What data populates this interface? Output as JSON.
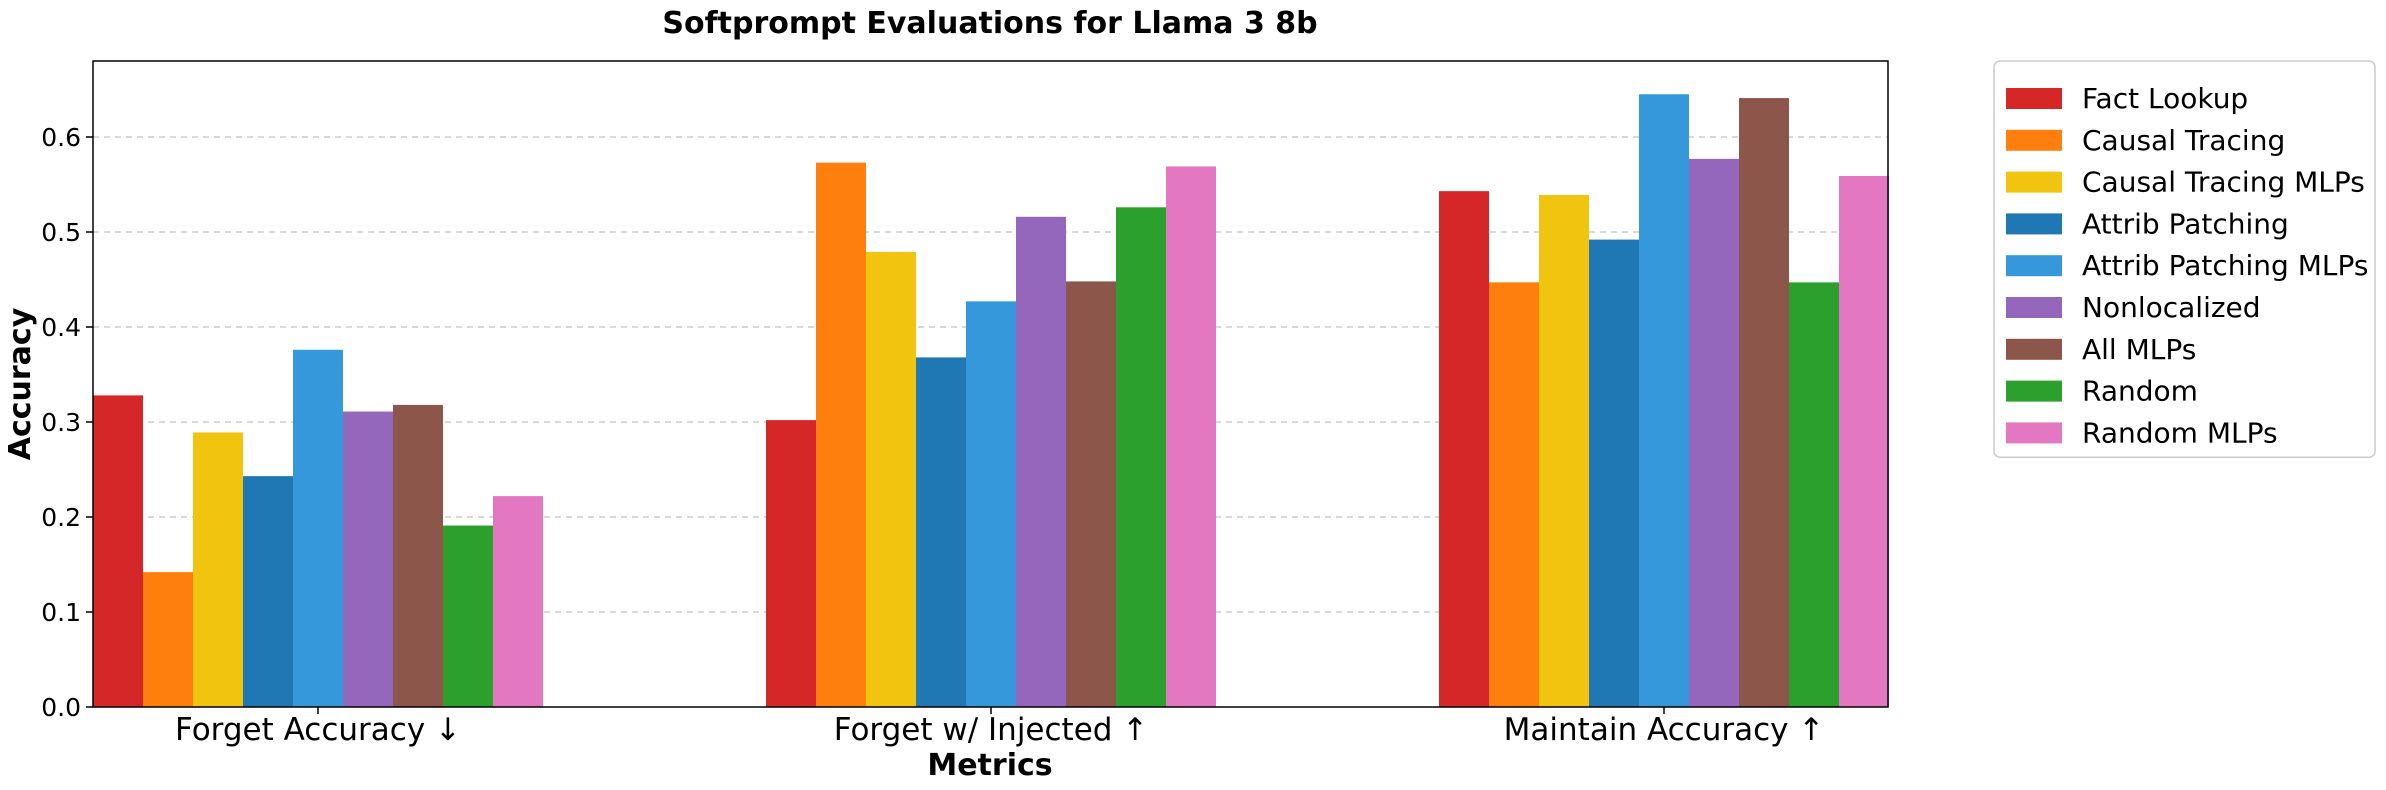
{
  "chart_data": {
    "type": "bar",
    "title": "Softprompt Evaluations for Llama 3 8b",
    "xlabel": "Metrics",
    "ylabel": "Accuracy",
    "ylim": [
      0,
      0.68
    ],
    "yticks": [
      "0.0",
      "0.1",
      "0.2",
      "0.3",
      "0.4",
      "0.5",
      "0.6"
    ],
    "grid": "horizontal dashed",
    "legend_position": "outside-right-top",
    "categories": [
      "Forget Accuracy ↓",
      "Forget w/ Injected ↑",
      "Maintain Accuracy ↑"
    ],
    "series": [
      {
        "name": "Fact Lookup",
        "color": "#d62728",
        "values": [
          0.328,
          0.302,
          0.543
        ]
      },
      {
        "name": "Causal Tracing",
        "color": "#ff7f0e",
        "values": [
          0.142,
          0.573,
          0.447
        ]
      },
      {
        "name": "Causal Tracing MLPs",
        "color": "#f1c40f",
        "values": [
          0.289,
          0.479,
          0.539
        ]
      },
      {
        "name": "Attrib Patching",
        "color": "#1f77b4",
        "values": [
          0.243,
          0.368,
          0.492
        ]
      },
      {
        "name": "Attrib Patching MLPs",
        "color": "#3498db",
        "values": [
          0.376,
          0.427,
          0.645
        ]
      },
      {
        "name": "Nonlocalized",
        "color": "#9467bd",
        "values": [
          0.311,
          0.516,
          0.577
        ]
      },
      {
        "name": "All MLPs",
        "color": "#8c564b",
        "values": [
          0.318,
          0.448,
          0.641
        ]
      },
      {
        "name": "Random",
        "color": "#2ca02c",
        "values": [
          0.191,
          0.526,
          0.447
        ]
      },
      {
        "name": "Random MLPs",
        "color": "#e377c2",
        "values": [
          0.222,
          0.569,
          0.559
        ]
      }
    ]
  }
}
